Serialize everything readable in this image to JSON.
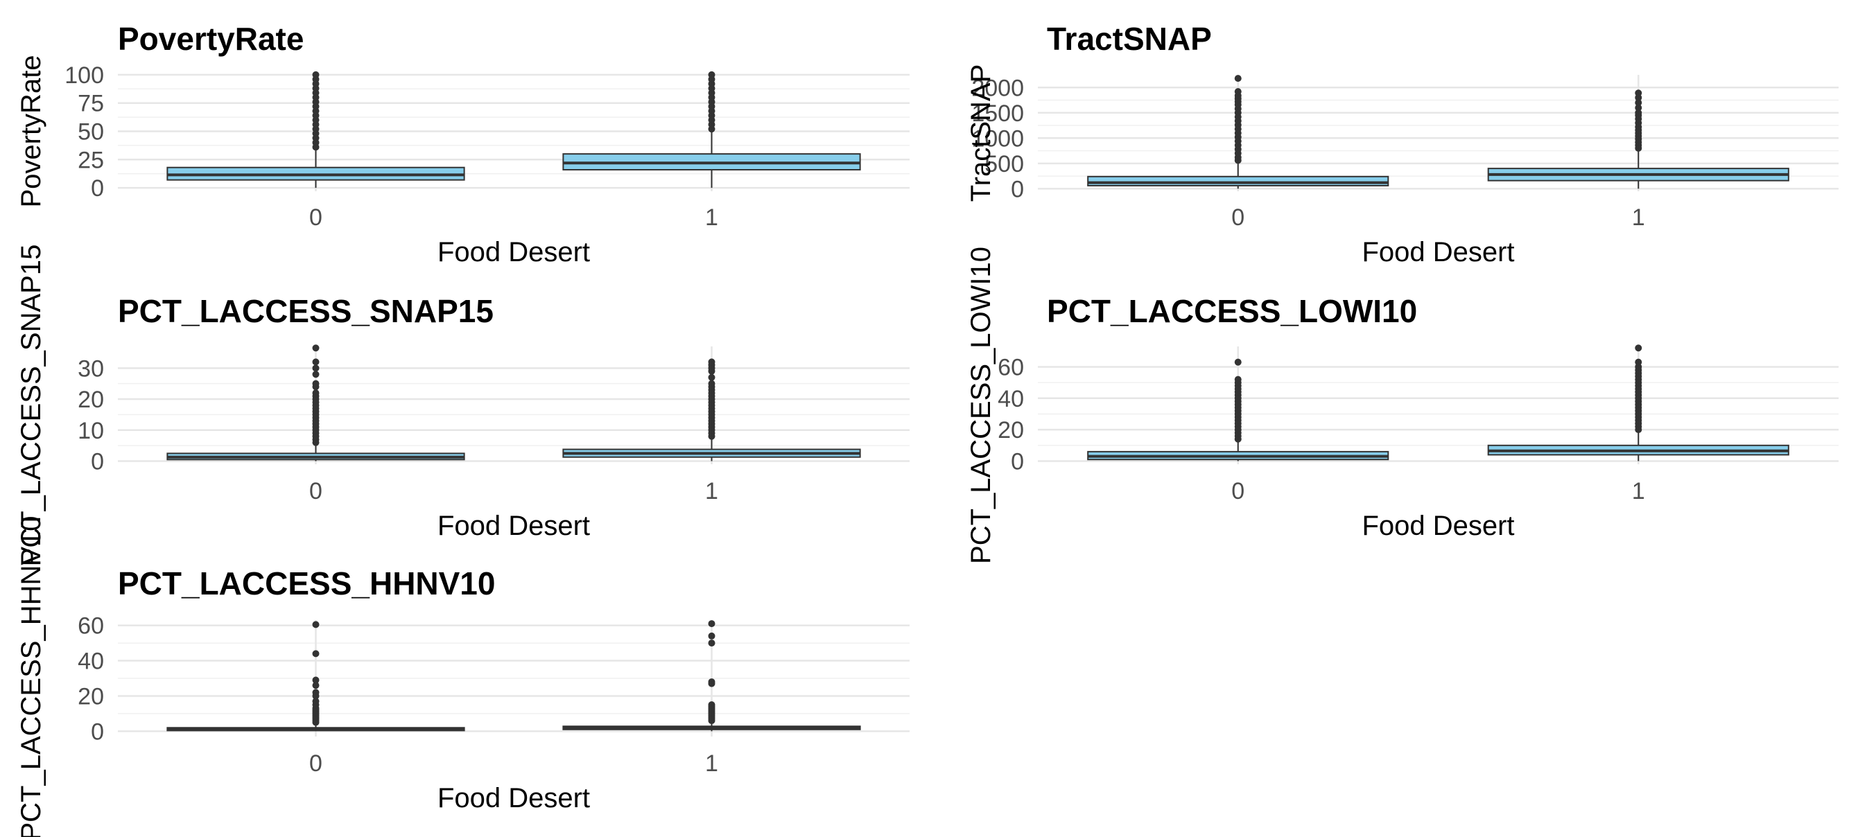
{
  "chart_data": [
    {
      "type": "box",
      "title": "PovertyRate",
      "xlabel": "Food Desert",
      "ylabel": "PovertyRate",
      "categories": [
        "0",
        "1"
      ],
      "ylim": [
        -3,
        103
      ],
      "yticks": [
        0,
        25,
        50,
        75,
        100
      ],
      "grid": true,
      "box_color": "#87CEEB",
      "boxes": [
        {
          "category": "0",
          "q1": 7,
          "median": 11.5,
          "q3": 18,
          "whisker_low": 0,
          "whisker_high": 35,
          "outliers": [
            36,
            40,
            44,
            48,
            52,
            56,
            60,
            64,
            68,
            72,
            76,
            80,
            84,
            88,
            92,
            96,
            100
          ]
        },
        {
          "category": "1",
          "q1": 16,
          "median": 22,
          "q3": 30,
          "whisker_low": 0,
          "whisker_high": 50,
          "outliers": [
            52,
            56,
            60,
            64,
            68,
            72,
            76,
            80,
            84,
            88,
            92,
            96,
            100
          ]
        }
      ]
    },
    {
      "type": "box",
      "title": "TractSNAP",
      "xlabel": "Food Desert",
      "ylabel": "TractSNAP",
      "categories": [
        "0",
        "1"
      ],
      "ylim": [
        -50,
        2250
      ],
      "yticks": [
        0,
        500,
        1000,
        1500,
        2000
      ],
      "grid": true,
      "box_color": "#87CEEB",
      "boxes": [
        {
          "category": "0",
          "q1": 60,
          "median": 120,
          "q3": 240,
          "whisker_low": 0,
          "whisker_high": 520,
          "outliers": [
            560,
            620,
            700,
            780,
            860,
            940,
            1020,
            1100,
            1180,
            1260,
            1340,
            1420,
            1500,
            1580,
            1660,
            1720,
            1780,
            1840,
            1920,
            2180
          ]
        },
        {
          "category": "1",
          "q1": 160,
          "median": 280,
          "q3": 400,
          "whisker_low": 0,
          "whisker_high": 760,
          "outliers": [
            800,
            860,
            920,
            980,
            1040,
            1100,
            1160,
            1220,
            1300,
            1380,
            1450,
            1500,
            1600,
            1700,
            1800,
            1890
          ]
        }
      ]
    },
    {
      "type": "box",
      "title": "PCT_LACCESS_SNAP15",
      "xlabel": "Food Desert",
      "ylabel": "PCT_LACCESS_SNAP15",
      "categories": [
        "0",
        "1"
      ],
      "ylim": [
        -1,
        37
      ],
      "yticks": [
        0,
        10,
        20,
        30
      ],
      "grid": true,
      "box_color": "#87CEEB",
      "boxes": [
        {
          "category": "0",
          "q1": 0.5,
          "median": 1.3,
          "q3": 2.5,
          "whisker_low": 0,
          "whisker_high": 5.5,
          "outliers": [
            6,
            7,
            8,
            9,
            10,
            11,
            12,
            13,
            14,
            15,
            16,
            17,
            18,
            19,
            20,
            21,
            22,
            24,
            25,
            28,
            30,
            32,
            36.5
          ]
        },
        {
          "category": "1",
          "q1": 1.3,
          "median": 2.5,
          "q3": 3.8,
          "whisker_low": 0,
          "whisker_high": 7.5,
          "outliers": [
            8,
            9,
            10,
            11,
            12,
            13,
            14,
            15,
            16,
            17,
            18,
            19,
            20,
            21,
            22,
            23,
            24,
            25,
            27,
            29,
            30,
            31,
            32
          ]
        }
      ]
    },
    {
      "type": "box",
      "title": "PCT_LACCESS_LOWI10",
      "xlabel": "Food Desert",
      "ylabel": "PCT_LACCESS_LOWI10",
      "categories": [
        "0",
        "1"
      ],
      "ylim": [
        -2,
        73
      ],
      "yticks": [
        0,
        20,
        40,
        60
      ],
      "grid": true,
      "box_color": "#87CEEB",
      "boxes": [
        {
          "category": "0",
          "q1": 1,
          "median": 3,
          "q3": 6,
          "whisker_low": 0,
          "whisker_high": 13,
          "outliers": [
            14,
            16,
            18,
            20,
            22,
            24,
            26,
            28,
            30,
            32,
            34,
            36,
            38,
            40,
            42,
            44,
            46,
            48,
            50,
            52,
            63
          ]
        },
        {
          "category": "1",
          "q1": 4,
          "median": 6.5,
          "q3": 10,
          "whisker_low": 0,
          "whisker_high": 19,
          "outliers": [
            20,
            22,
            24,
            26,
            28,
            30,
            32,
            34,
            36,
            38,
            40,
            42,
            44,
            46,
            48,
            50,
            52,
            54,
            56,
            58,
            60,
            63,
            72
          ]
        }
      ]
    },
    {
      "type": "box",
      "title": "PCT_LACCESS_HHNV10",
      "xlabel": "Food Desert",
      "ylabel": "PCT_LACCESS_HHNV10",
      "categories": [
        "0",
        "1"
      ],
      "ylim": [
        -3,
        63
      ],
      "yticks": [
        0,
        20,
        40,
        60
      ],
      "grid": true,
      "box_color": "#87CEEB",
      "boxes": [
        {
          "category": "0",
          "q1": 0.4,
          "median": 1.2,
          "q3": 2,
          "whisker_low": 0,
          "whisker_high": 4,
          "outliers": [
            5,
            6,
            7,
            8,
            9,
            10,
            11,
            12,
            13,
            15,
            17,
            20,
            22,
            26,
            29,
            44,
            60.5
          ]
        },
        {
          "category": "1",
          "q1": 1,
          "median": 1.8,
          "q3": 2.8,
          "whisker_low": 0,
          "whisker_high": 5,
          "outliers": [
            6,
            7,
            8,
            9,
            10,
            11,
            12,
            13,
            14,
            15,
            27,
            28,
            50,
            54,
            61
          ]
        }
      ]
    }
  ]
}
